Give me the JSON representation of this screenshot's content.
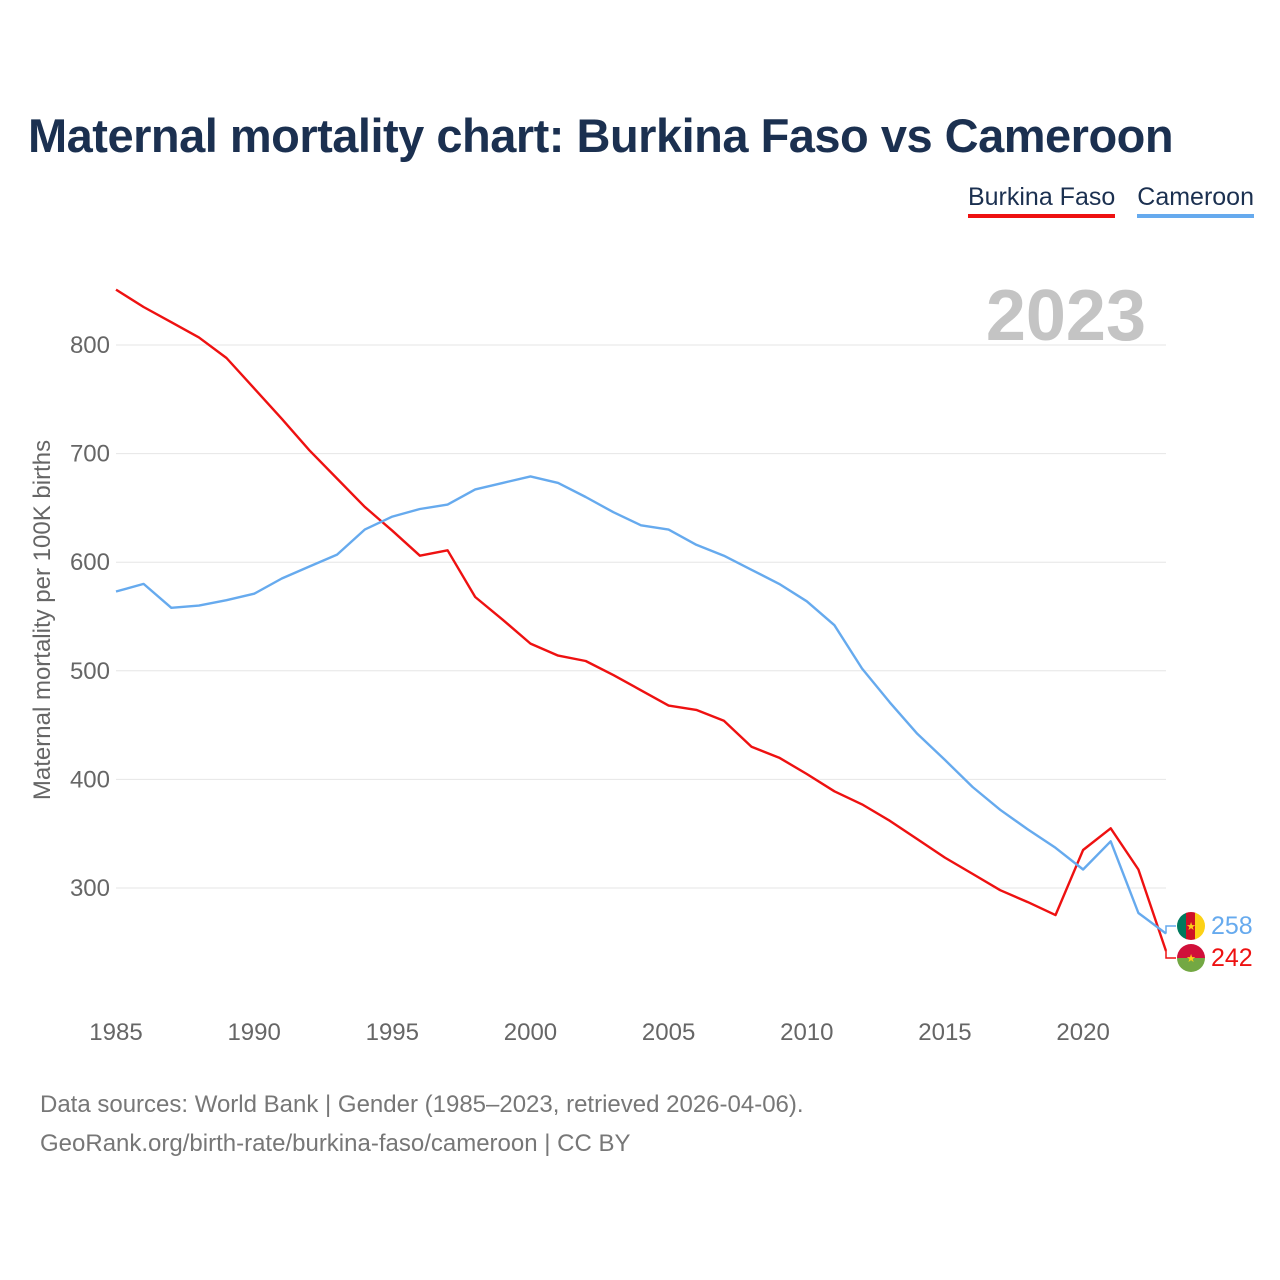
{
  "title": "Maternal mortality chart: Burkina Faso vs Cameroon",
  "chart_data": {
    "type": "line",
    "title": "Maternal mortality chart: Burkina Faso vs Cameroon",
    "year_label": "2023",
    "xlabel": "",
    "ylabel": "Maternal mortality per 100K births",
    "xlim": [
      1985,
      2023
    ],
    "ylim": [
      200,
      860
    ],
    "x_ticks": [
      "1985",
      "1990",
      "1995",
      "2000",
      "2005",
      "2010",
      "2015",
      "2020"
    ],
    "y_ticks": [
      "300",
      "400",
      "500",
      "600",
      "700",
      "800"
    ],
    "grid": true,
    "legend_position": "top-right",
    "x": [
      1985,
      1986,
      1987,
      1988,
      1989,
      1990,
      1991,
      1992,
      1993,
      1994,
      1995,
      1996,
      1997,
      1998,
      1999,
      2000,
      2001,
      2002,
      2003,
      2004,
      2005,
      2006,
      2007,
      2008,
      2009,
      2010,
      2011,
      2012,
      2013,
      2014,
      2015,
      2016,
      2017,
      2018,
      2019,
      2020,
      2021,
      2022,
      2023
    ],
    "series": [
      {
        "name": "Burkina Faso",
        "color": "#ee1111",
        "end_label": "242",
        "values": [
          851,
          835,
          821,
          807,
          788,
          760,
          732,
          703,
          677,
          651,
          629,
          606,
          611,
          568,
          547,
          525,
          514,
          509,
          496,
          482,
          468,
          464,
          454,
          430,
          420,
          405,
          389,
          377,
          362,
          345,
          328,
          313,
          298,
          287,
          275,
          335,
          355,
          317,
          242
        ]
      },
      {
        "name": "Cameroon",
        "color": "#66aaee",
        "end_label": "258",
        "values": [
          573,
          580,
          558,
          560,
          565,
          571,
          585,
          596,
          607,
          630,
          642,
          649,
          653,
          667,
          673,
          679,
          673,
          660,
          646,
          634,
          630,
          616,
          606,
          593,
          580,
          564,
          542,
          502,
          471,
          442,
          418,
          393,
          372,
          354,
          337,
          317,
          343,
          277,
          258
        ]
      }
    ]
  },
  "footer": {
    "line1": "Data sources: World Bank | Gender (1985–2023, retrieved 2026-04-06).",
    "line2": "GeoRank.org/birth-rate/burkina-faso/cameroon | CC BY"
  }
}
